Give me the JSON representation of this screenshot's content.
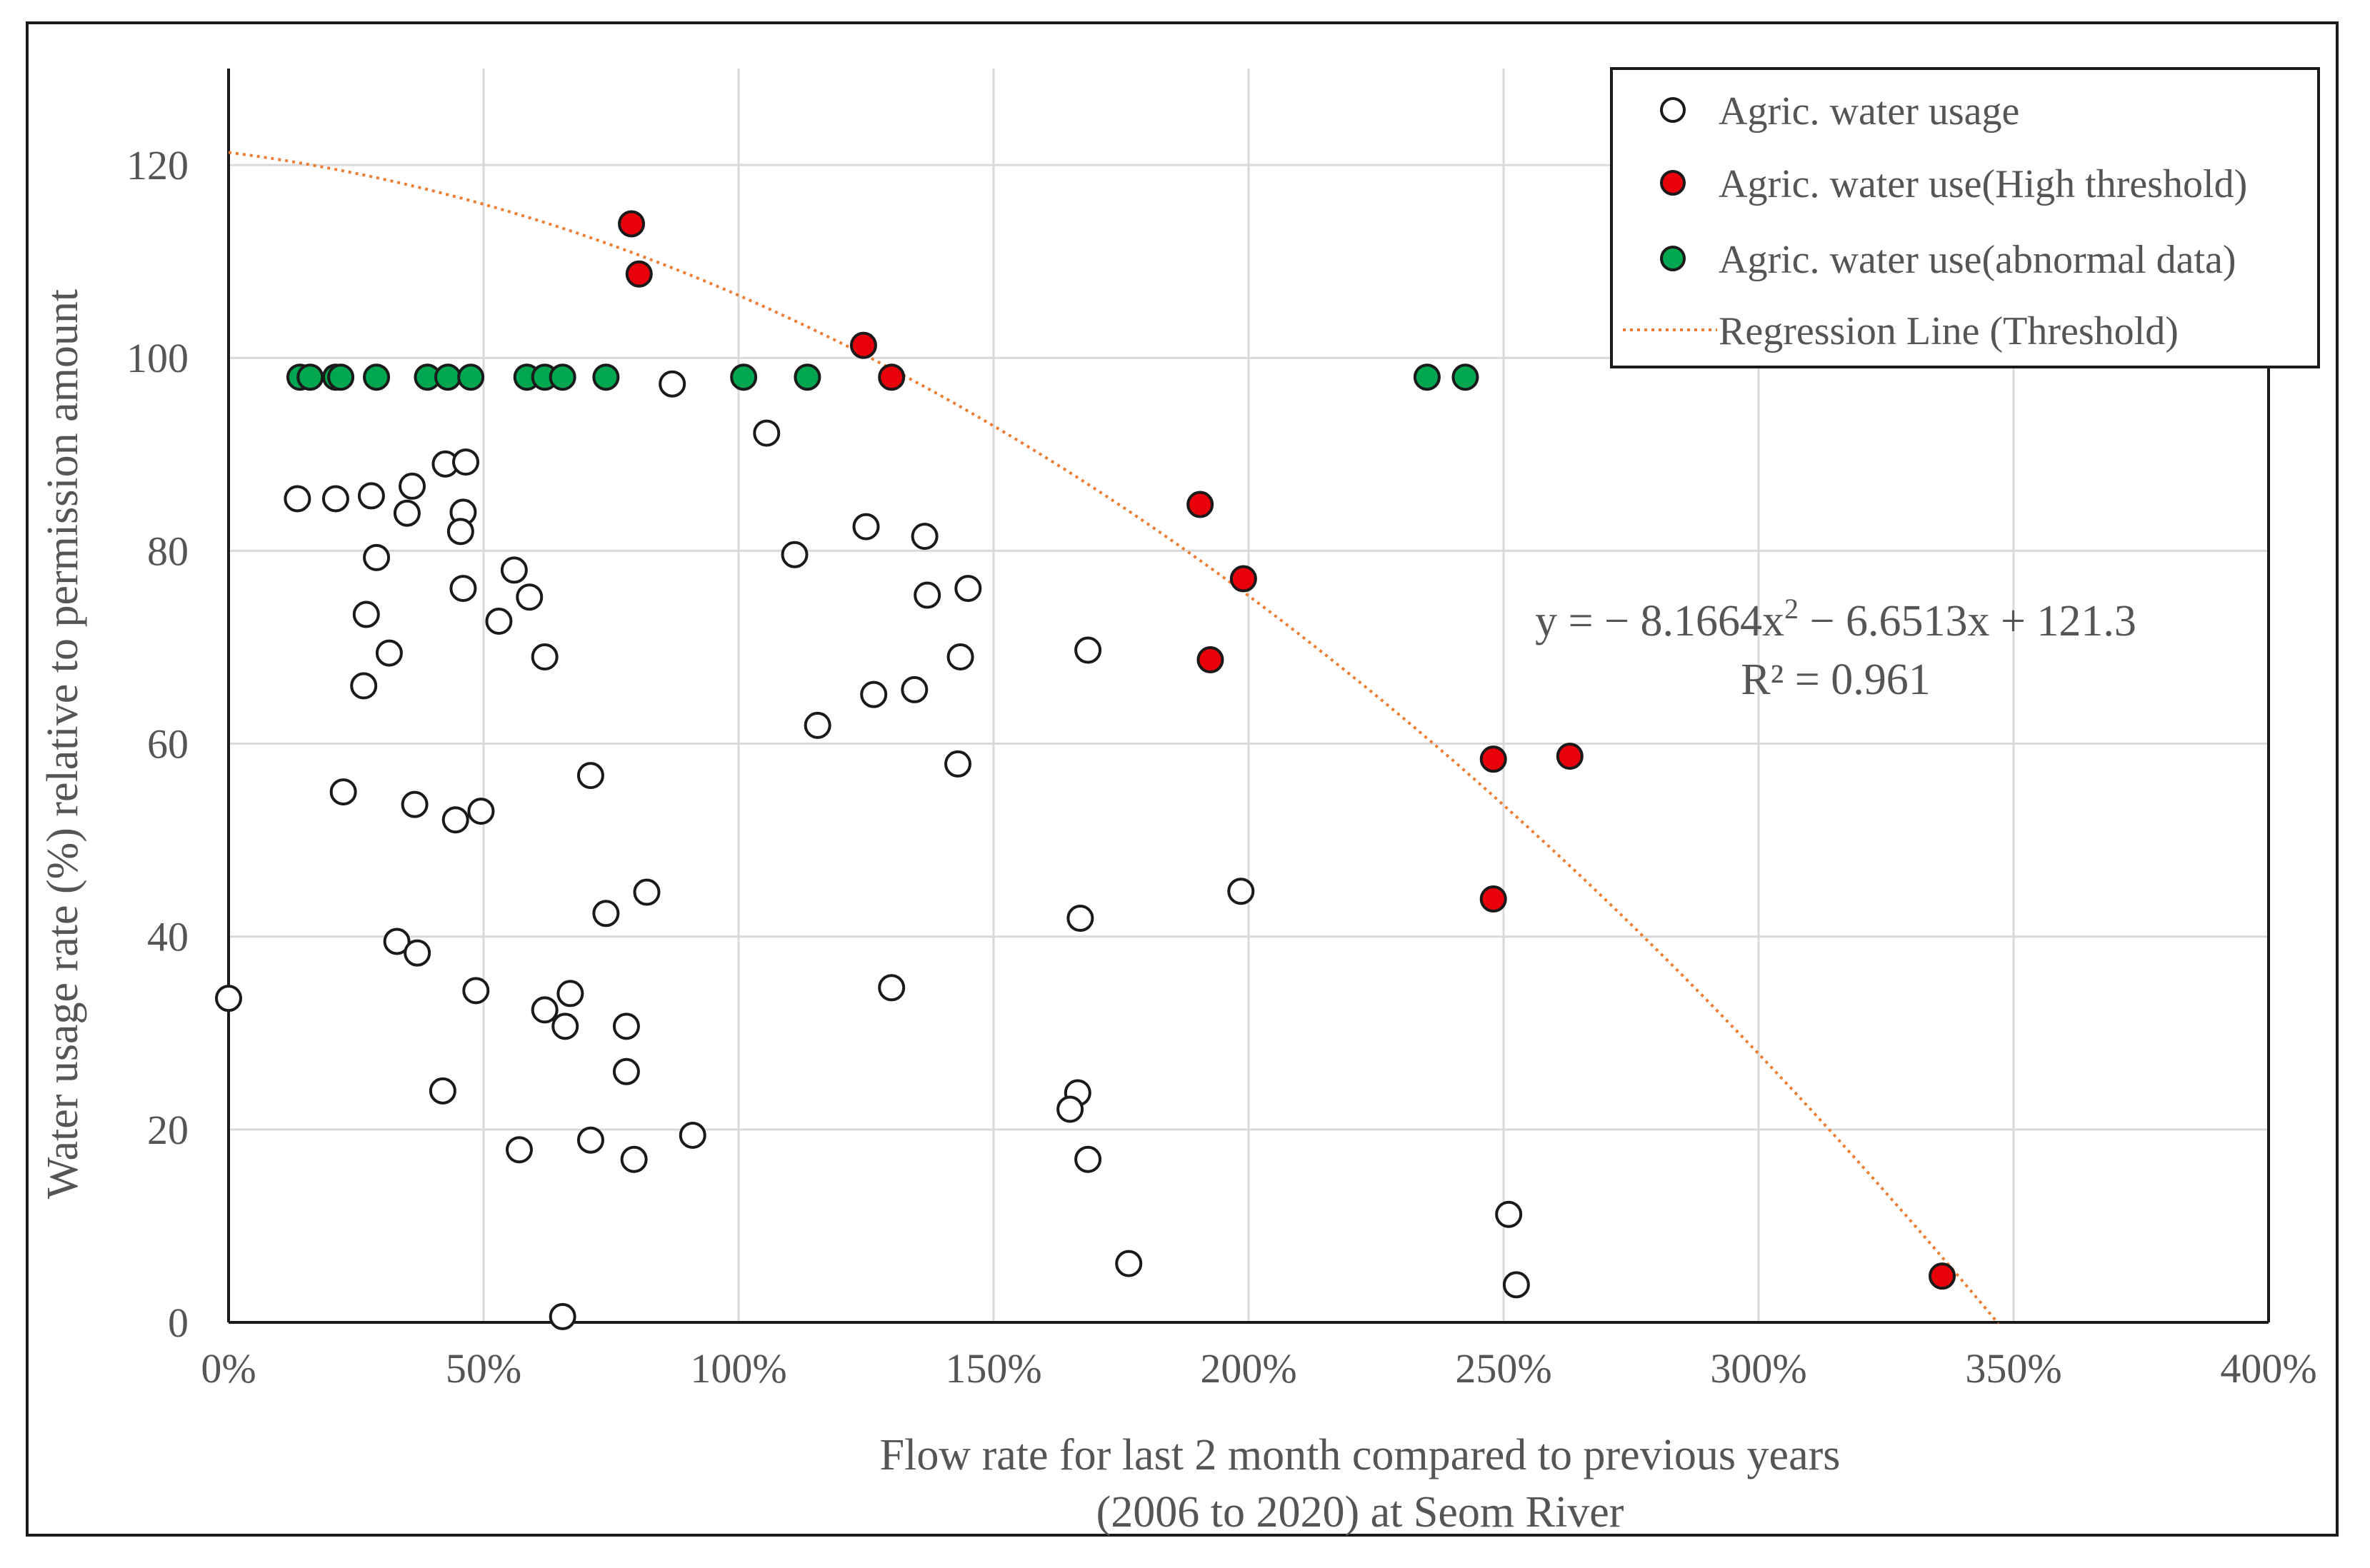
{
  "chart_data": {
    "type": "scatter",
    "title": "",
    "xlabel_lines": [
      "Flow rate for last 2 month compared to  previous years",
      "(2006 to 2020) at Seom River"
    ],
    "ylabel": "Water  usage rate (%)  relative to permission  amount",
    "xlim": [
      0,
      400
    ],
    "ylim": [
      0,
      130
    ],
    "x_ticks": [
      0,
      50,
      100,
      150,
      200,
      250,
      300,
      350,
      400
    ],
    "x_tick_labels": [
      "0%",
      "50%",
      "100%",
      "150%",
      "200%",
      "250%",
      "300%",
      "350%",
      "400%"
    ],
    "y_ticks": [
      0,
      20,
      40,
      60,
      80,
      100,
      120
    ],
    "y_tick_labels": [
      "0",
      "20",
      "40",
      "60",
      "80",
      "100",
      "120"
    ],
    "grid": true,
    "legend_position": "top-right",
    "series": [
      {
        "name": "Agric. water usage",
        "marker": "open-circle",
        "color": "#ffffff",
        "points": [
          [
            0,
            33.6
          ],
          [
            13.5,
            85.4
          ],
          [
            21,
            85.4
          ],
          [
            28,
            85.7
          ],
          [
            36,
            86.7
          ],
          [
            42.5,
            89
          ],
          [
            46.5,
            89.2
          ],
          [
            35,
            83.9
          ],
          [
            46,
            84
          ],
          [
            45.5,
            82
          ],
          [
            29,
            79.3
          ],
          [
            56,
            78
          ],
          [
            46,
            76.1
          ],
          [
            59,
            75.2
          ],
          [
            27,
            73.4
          ],
          [
            53,
            72.7
          ],
          [
            31.5,
            69.4
          ],
          [
            62,
            69
          ],
          [
            26.5,
            66
          ],
          [
            71,
            56.7
          ],
          [
            22.5,
            55
          ],
          [
            36.5,
            53.7
          ],
          [
            44.5,
            52.1
          ],
          [
            49.5,
            53
          ],
          [
            82,
            44.6
          ],
          [
            74,
            42.4
          ],
          [
            33,
            39.5
          ],
          [
            37,
            38.3
          ],
          [
            48.5,
            34.4
          ],
          [
            62,
            32.4
          ],
          [
            67,
            34.1
          ],
          [
            66,
            30.7
          ],
          [
            78,
            30.7
          ],
          [
            78,
            26
          ],
          [
            42,
            24
          ],
          [
            57,
            17.9
          ],
          [
            71,
            18.9
          ],
          [
            79.5,
            16.9
          ],
          [
            91,
            19.4
          ],
          [
            65.5,
            0.6
          ],
          [
            87,
            97.3
          ],
          [
            105.5,
            92.2
          ],
          [
            111,
            79.6
          ],
          [
            125,
            82.5
          ],
          [
            136.5,
            81.5
          ],
          [
            137,
            75.4
          ],
          [
            145,
            76.1
          ],
          [
            143.5,
            69
          ],
          [
            126.5,
            65.1
          ],
          [
            134.5,
            65.6
          ],
          [
            115.5,
            61.9
          ],
          [
            143,
            57.9
          ],
          [
            168.5,
            69.7
          ],
          [
            130,
            34.7
          ],
          [
            167,
            41.9
          ],
          [
            166.5,
            23.8
          ],
          [
            165,
            22.1
          ],
          [
            168.5,
            16.9
          ],
          [
            176.5,
            6.1
          ],
          [
            198.5,
            44.7
          ],
          [
            251,
            11.2
          ],
          [
            252.5,
            3.9
          ]
        ]
      },
      {
        "name": "Agric. water use(High threshold)",
        "marker": "filled-circle",
        "color": "#e8000b",
        "points": [
          [
            79,
            113.9
          ],
          [
            80.5,
            108.7
          ],
          [
            124.5,
            101.3
          ],
          [
            130,
            98
          ],
          [
            190.5,
            84.8
          ],
          [
            199,
            77.1
          ],
          [
            192.5,
            68.7
          ],
          [
            248,
            58.4
          ],
          [
            263,
            58.7
          ],
          [
            248,
            43.9
          ],
          [
            336,
            4.8
          ]
        ]
      },
      {
        "name": "Agric. water use(abnormal data)",
        "marker": "filled-circle",
        "color": "#00a650",
        "points": [
          [
            14,
            98
          ],
          [
            16,
            98
          ],
          [
            21,
            98
          ],
          [
            22,
            98
          ],
          [
            29,
            98
          ],
          [
            39,
            98
          ],
          [
            43,
            98
          ],
          [
            47.5,
            98
          ],
          [
            58.5,
            98
          ],
          [
            62,
            98
          ],
          [
            65.5,
            98
          ],
          [
            74,
            98
          ],
          [
            101,
            98
          ],
          [
            113.5,
            98
          ],
          [
            235,
            98
          ],
          [
            242.5,
            98
          ]
        ]
      },
      {
        "name": "Regression Line (Threshold)",
        "marker": "line-dotted",
        "color": "#ed7d31",
        "x_domain_fraction": [
          0,
          3.47
        ],
        "coefficients": {
          "a": -8.1664,
          "b": -6.6513,
          "c": 121.3
        }
      }
    ],
    "annotations": {
      "equation_prefix": "y = − 8.1664x",
      "equation_exp": "2",
      "equation_suffix": " − 6.6513x + 121.3",
      "r2": "R² = 0.961"
    }
  },
  "colors": {
    "axis": "#1a1a1a",
    "grid": "#d9d9d9",
    "marker_edge": "#1a1a1a",
    "text": "#555555"
  }
}
